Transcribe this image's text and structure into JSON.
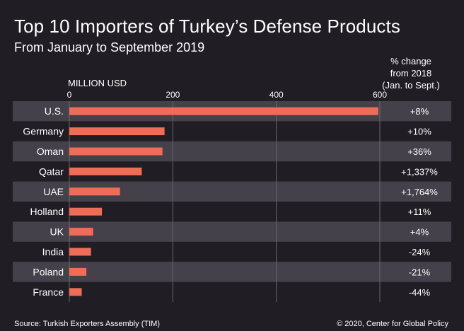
{
  "title": "Top 10 Importers of Turkey’s Defense Products",
  "subtitle": "From January to September 2019",
  "change_header": "% change\nfrom 2018\n(Jan. to Sept.)",
  "footer": {
    "source": "Source: Turkish Exporters Assembly (TIM)",
    "credit": "© 2020, Center for Global Policy"
  },
  "colors": {
    "background": "#201d24",
    "band": "#45414b",
    "bar": "#ef6c57",
    "gridline": "#6a6670",
    "text": "#ffffff"
  },
  "chart_data": {
    "type": "bar",
    "orientation": "horizontal",
    "xlabel": "MILLION USD",
    "xlim": [
      0,
      600
    ],
    "xticks": [
      0,
      200,
      400,
      600
    ],
    "grid": true,
    "categories": [
      "U.S.",
      "Germany",
      "Oman",
      "Qatar",
      "UAE",
      "Holland",
      "UK",
      "India",
      "Poland",
      "France"
    ],
    "values": [
      597,
      184,
      180,
      140,
      98,
      63,
      46,
      42,
      33,
      24
    ],
    "pct_change": [
      "+8%",
      "+10%",
      "+36%",
      "+1,337%",
      "+1,764%",
      "+11%",
      "+4%",
      "-24%",
      "-21%",
      "-44%"
    ]
  }
}
